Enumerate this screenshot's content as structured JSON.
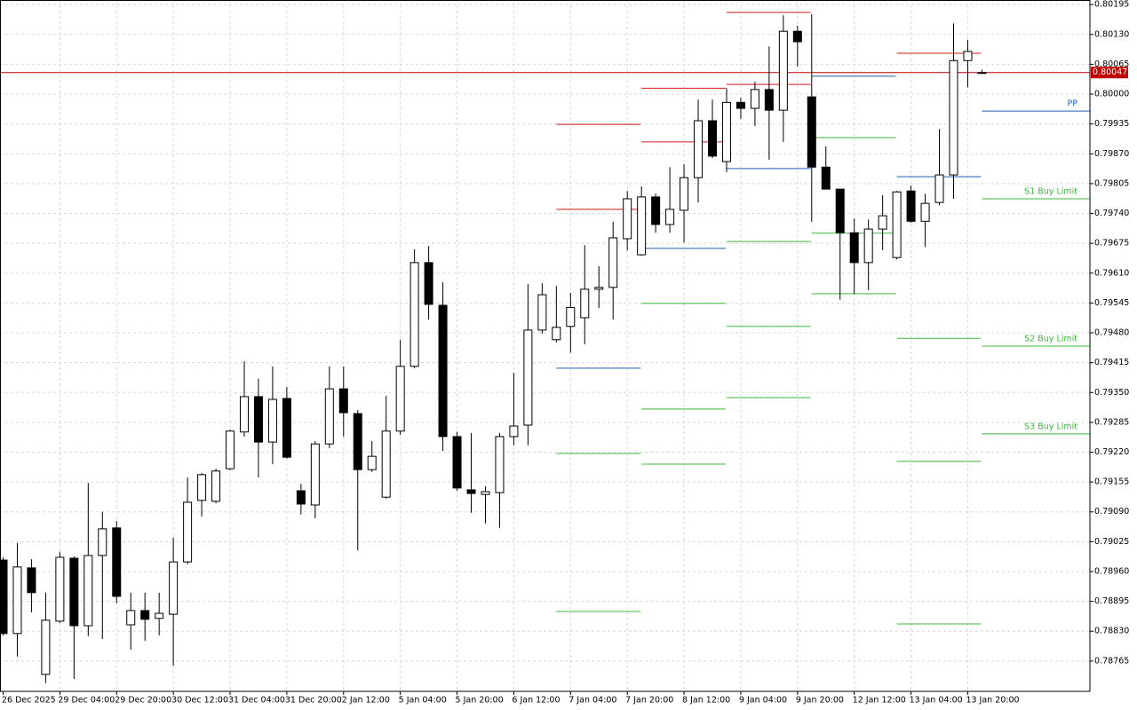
{
  "chart_data": {
    "type": "candlestick",
    "x": [
      "26 Dec 2025",
      null,
      null,
      null,
      "29 Dec 04:00",
      null,
      null,
      null,
      "29 Dec 20:00",
      null,
      null,
      null,
      "30 Dec 12:00",
      null,
      null,
      null,
      "31 Dec 04:00",
      null,
      null,
      null,
      "31 Dec 20:00",
      null,
      null,
      null,
      "2 Jan 12:00",
      null,
      null,
      null,
      "5 Jan 04:00",
      null,
      null,
      null,
      "5 Jan 20:00",
      null,
      null,
      null,
      "6 Jan 12:00",
      null,
      null,
      null,
      "7 Jan 04:00",
      null,
      null,
      null,
      "7 Jan 20:00",
      null,
      null,
      null,
      "8 Jan 12:00",
      null,
      null,
      null,
      "9 Jan 04:00",
      null,
      null,
      null,
      "9 Jan 20:00",
      null,
      null,
      null,
      "12 Jan 12:00",
      null,
      null,
      null,
      "13 Jan 04:00",
      null,
      null,
      null,
      "13 Jan 20:00",
      null
    ],
    "open": [
      0.78985,
      0.78825,
      0.78968,
      0.78736,
      0.78852,
      0.78989,
      0.78842,
      0.78995,
      0.79055,
      0.78844,
      0.78875,
      0.78858,
      0.78867,
      0.78981,
      0.79115,
      0.79113,
      0.79184,
      0.79264,
      0.79341,
      0.79242,
      0.79337,
      0.79136,
      0.79105,
      0.79238,
      0.79358,
      0.79304,
      0.79182,
      0.79122,
      0.79266,
      0.79407,
      0.79633,
      0.7954,
      0.79254,
      0.79138,
      0.79128,
      0.79132,
      0.79254,
      0.79279,
      0.79486,
      0.79465,
      0.79494,
      0.79513,
      0.79575,
      0.79579,
      0.79685,
      0.7965,
      0.79776,
      0.79716,
      0.79747,
      0.79818,
      0.79942,
      0.79853,
      0.79982,
      0.79969,
      0.8001,
      0.79965,
      0.80137,
      0.79994,
      0.79841,
      0.79793,
      0.79698,
      0.79633,
      0.79706,
      0.79644,
      0.79789,
      0.79723,
      0.79764,
      0.79824,
      0.80073,
      0.80047
    ],
    "high": [
      0.78991,
      0.79022,
      0.78987,
      0.78914,
      0.79003,
      0.78993,
      0.79153,
      0.7909,
      0.7907,
      0.78914,
      0.78914,
      0.78914,
      0.79034,
      0.79165,
      0.79175,
      0.79184,
      0.79269,
      0.79418,
      0.7938,
      0.79407,
      0.79362,
      0.79151,
      0.79244,
      0.79407,
      0.79407,
      0.79312,
      0.79244,
      0.79343,
      0.79465,
      0.79662,
      0.79669,
      0.7959,
      0.79264,
      0.79262,
      0.79146,
      0.79262,
      0.79393,
      0.79586,
      0.79588,
      0.79582,
      0.79567,
      0.79671,
      0.79625,
      0.79722,
      0.79789,
      0.79799,
      0.79783,
      0.79841,
      0.79847,
      0.79988,
      0.79988,
      0.80013,
      0.79992,
      0.80027,
      0.80104,
      0.80172,
      0.80149,
      0.80174,
      0.79886,
      0.79793,
      0.79729,
      0.79727,
      0.7978,
      0.79789,
      0.79801,
      0.79783,
      0.79924,
      0.80154,
      0.80118,
      0.80053
    ],
    "low": [
      0.78821,
      0.78775,
      0.78871,
      0.78717,
      0.78848,
      0.78726,
      0.78819,
      0.78813,
      0.78891,
      0.7879,
      0.78809,
      0.78821,
      0.78755,
      0.78976,
      0.7908,
      0.79109,
      0.79181,
      0.79254,
      0.79165,
      0.79194,
      0.79206,
      0.79084,
      0.79076,
      0.79229,
      0.79254,
      0.79006,
      0.79177,
      0.79119,
      0.79258,
      0.79403,
      0.79509,
      0.79223,
      0.79136,
      0.79088,
      0.79065,
      0.79055,
      0.79235,
      0.79235,
      0.79478,
      0.79459,
      0.79437,
      0.79455,
      0.79534,
      0.79509,
      0.7966,
      0.79648,
      0.79698,
      0.79698,
      0.79677,
      0.79764,
      0.79861,
      0.7983,
      0.79946,
      0.7993,
      0.79857,
      0.79896,
      0.8006,
      0.79722,
      0.79793,
      0.79552,
      0.79565,
      0.79573,
      0.7966,
      0.7964,
      0.7972,
      0.79667,
      0.79758,
      0.79772,
      0.80015,
      0.80046
    ],
    "close": [
      0.78825,
      0.7897,
      0.78914,
      0.78854,
      0.78991,
      0.78842,
      0.78995,
      0.79053,
      0.78906,
      0.78875,
      0.78856,
      0.78869,
      0.78981,
      0.79111,
      0.79171,
      0.79179,
      0.79266,
      0.79341,
      0.79242,
      0.79335,
      0.79209,
      0.79107,
      0.79238,
      0.79358,
      0.79306,
      0.79182,
      0.79211,
      0.79266,
      0.79407,
      0.79633,
      0.79542,
      0.79254,
      0.79142,
      0.7913,
      0.79134,
      0.79254,
      0.79277,
      0.79486,
      0.79563,
      0.79492,
      0.79535,
      0.79575,
      0.79579,
      0.79687,
      0.79772,
      0.79776,
      0.79716,
      0.79749,
      0.79818,
      0.79942,
      0.79865,
      0.79982,
      0.79969,
      0.8001,
      0.79965,
      0.80137,
      0.80114,
      0.79841,
      0.79793,
      0.79698,
      0.79633,
      0.79706,
      0.79735,
      0.79787,
      0.79723,
      0.79762,
      0.79824,
      0.80073,
      0.80093,
      0.80047
    ],
    "up_color": "#ffffff",
    "down_color": "#000000",
    "wick_color": "#000000",
    "ylim": [
      0.78699,
      0.80205
    ],
    "yticks": [
      0.80195,
      {
        "value": 0.8013,
        "label": "0.80130"
      },
      0.80065,
      {
        "value": 0.8,
        "label": "0.80000"
      },
      0.79935,
      {
        "value": 0.7987,
        "label": "0.79870"
      },
      0.79805,
      {
        "value": 0.7974,
        "label": "0.79740"
      },
      0.79675,
      {
        "value": 0.7961,
        "label": "0.79610"
      },
      0.79545,
      {
        "value": 0.7948,
        "label": "0.79480"
      },
      0.79415,
      {
        "value": 0.7935,
        "label": "0.79350"
      },
      0.79285,
      {
        "value": 0.7922,
        "label": "0.79220"
      },
      0.79155,
      {
        "value": 0.7909,
        "label": "0.79090"
      },
      0.79025,
      {
        "value": 0.7896,
        "label": "0.78960"
      },
      0.78895,
      {
        "value": 0.7883,
        "label": "0.78830"
      },
      0.78765
    ],
    "grid": true,
    "current_price": 0.80047,
    "current_price_color": "#c00000",
    "pivot_segments": [
      {
        "from": 39,
        "to": 45,
        "levels": [
          {
            "value": 0.79934,
            "color": "#d01818"
          },
          {
            "value": 0.79749,
            "color": "#d01818"
          },
          {
            "value": 0.79403,
            "color": "#1f5fb0"
          },
          {
            "value": 0.79217,
            "color": "#3cb83c"
          },
          {
            "value": 0.78873,
            "color": "#3cb83c"
          }
        ]
      },
      {
        "from": 45,
        "to": 51,
        "levels": [
          {
            "value": 0.80013,
            "color": "#d01818"
          },
          {
            "value": 0.79896,
            "color": "#d01818"
          },
          {
            "value": 0.79664,
            "color": "#1f5fb0"
          },
          {
            "value": 0.79544,
            "color": "#3cb83c"
          },
          {
            "value": 0.79314,
            "color": "#3cb83c"
          },
          {
            "value": 0.79194,
            "color": "#3cb83c"
          }
        ]
      },
      {
        "from": 51,
        "to": 57,
        "levels": [
          {
            "value": 0.80178,
            "color": "#d01818"
          },
          {
            "value": 0.80021,
            "color": "#d01818"
          },
          {
            "value": 0.79838,
            "color": "#1f5fb0"
          },
          {
            "value": 0.79679,
            "color": "#3cb83c"
          },
          {
            "value": 0.79494,
            "color": "#3cb83c"
          },
          {
            "value": 0.79339,
            "color": "#3cb83c"
          }
        ]
      },
      {
        "from": 57,
        "to": 63,
        "levels": [
          {
            "value": 0.80039,
            "color": "#1f5fb0"
          },
          {
            "value": 0.79905,
            "color": "#3cb83c"
          },
          {
            "value": 0.79697,
            "color": "#3cb83c"
          },
          {
            "value": 0.79565,
            "color": "#3cb83c"
          }
        ]
      },
      {
        "from": 63,
        "to": 69,
        "levels": [
          {
            "value": 0.80089,
            "color": "#d01818"
          },
          {
            "value": 0.7982,
            "color": "#1f5fb0"
          },
          {
            "value": 0.79468,
            "color": "#3cb83c"
          },
          {
            "value": 0.792,
            "color": "#3cb83c"
          },
          {
            "value": 0.78846,
            "color": "#3cb83c"
          }
        ]
      },
      {
        "from": 69,
        "levels": [
          {
            "value": 0.79963,
            "color": "#1f5fb0",
            "label": "PP"
          },
          {
            "value": 0.79772,
            "color": "#3cb83c",
            "label": "S1 Buy Limit"
          },
          {
            "value": 0.79451,
            "color": "#3cb83c",
            "label": "S2 Buy Limit"
          },
          {
            "value": 0.7926,
            "color": "#3cb83c",
            "label": "S3 Buy Limit"
          }
        ]
      }
    ]
  }
}
